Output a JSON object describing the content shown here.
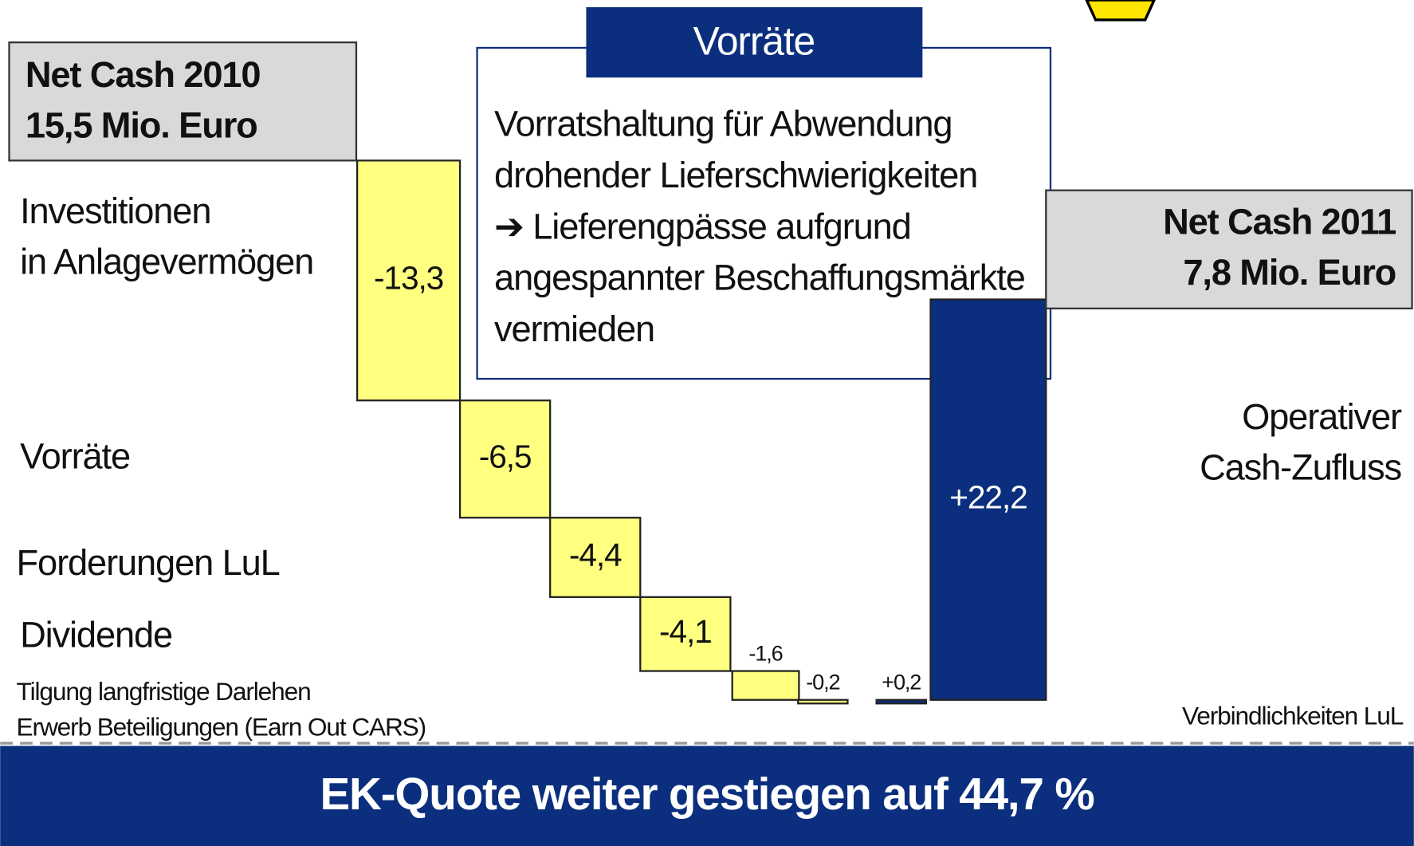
{
  "chart_data": {
    "type": "waterfall",
    "start": {
      "title": "Net Cash 2010",
      "value": 15.5,
      "value_label": "15,5 Mio. Euro"
    },
    "end": {
      "title": "Net Cash 2011",
      "value": 7.8,
      "value_label": "7,8 Mio. Euro"
    },
    "categories": [
      [
        "Investitionen",
        "in Anlagevermögen"
      ],
      [
        "Vorräte"
      ],
      [
        "Forderungen LuL"
      ],
      [
        "Dividende"
      ],
      [
        "Tilgung langfristige Darlehen"
      ],
      [
        "Erwerb Beteiligungen (Earn Out CARS)"
      ],
      [
        "Verbindlichkeiten LuL"
      ],
      [
        "Operativer",
        "Cash-Zufluss"
      ]
    ],
    "values": [
      -13.3,
      -6.5,
      -4.4,
      -4.1,
      -1.6,
      -0.2,
      0.2,
      22.2
    ],
    "value_labels": [
      "-13,3",
      "-6,5",
      "-4,4",
      "-4,1",
      "-1,6",
      "-0,2",
      "+0,2",
      "+22,2"
    ],
    "colors": {
      "negative": "#ffff80",
      "positive": "#0b2f7e"
    },
    "annotation": {
      "title": "Vorräte",
      "lines": [
        "Vorratshaltung für Abwendung",
        "drohender Lieferschwierigkeiten",
        "➔ Lieferengpässe aufgrund",
        "angespannter Beschaffungsmärkte",
        "vermieden"
      ]
    },
    "banner": "EK-Quote weiter gestiegen auf 44,7 %"
  }
}
